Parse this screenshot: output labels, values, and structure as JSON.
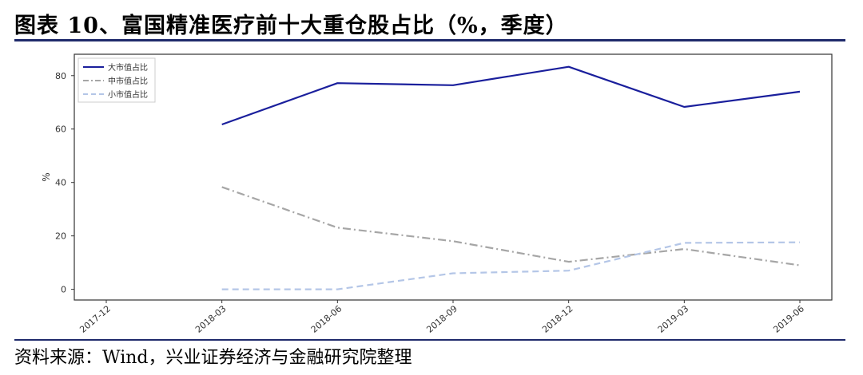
{
  "header": {
    "title": "图表 10、富国精准医疗前十大重仓股占比（%，季度）"
  },
  "footer": {
    "source": "资料来源：Wind，兴业证券经济与金融研究院整理"
  },
  "chart_data": {
    "type": "line",
    "title": "",
    "xlabel": "",
    "ylabel": "%",
    "x": [
      "2017-12",
      "2018-03",
      "2018-06",
      "2018-09",
      "2018-12",
      "2019-03",
      "2019-06"
    ],
    "ylim": [
      -4,
      88
    ],
    "yticks": [
      0,
      20,
      40,
      60,
      80
    ],
    "grid": false,
    "legend_position": "top-left",
    "series": [
      {
        "name": "大市值占比",
        "color": "#1a1f9c",
        "dash": "solid",
        "values": [
          null,
          61.7,
          77.2,
          76.4,
          83.3,
          68.3,
          74.0
        ]
      },
      {
        "name": "中市值占比",
        "color": "#a6a6a6",
        "dash": "dashdot",
        "values": [
          null,
          38.3,
          23.1,
          18.0,
          10.3,
          15.1,
          9.0
        ]
      },
      {
        "name": "小市值占比",
        "color": "#b4c6e7",
        "dash": "dashed",
        "values": [
          null,
          0.0,
          0.0,
          6.0,
          7.0,
          17.4,
          17.6
        ]
      }
    ]
  }
}
